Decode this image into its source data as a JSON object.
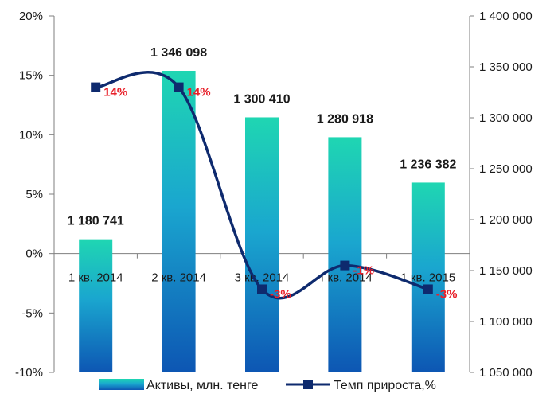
{
  "chart_data": {
    "type": "bar",
    "categories": [
      "1 кв. 2014",
      "2 кв. 2014",
      "3 кв. 2014",
      "4 кв. 2014",
      "1 кв. 2015"
    ],
    "series": [
      {
        "name": "Активы, млн. тенге",
        "type": "bar",
        "axis": "right",
        "values": [
          1180741,
          1346098,
          1300410,
          1280918,
          1236382
        ],
        "value_labels": [
          "1 180 741",
          "1 346 098",
          "1 300 410",
          "1 280 918",
          "1 236 382"
        ]
      },
      {
        "name": "Темп прироста,%",
        "type": "line",
        "axis": "left",
        "values": [
          14,
          14,
          -3,
          -1,
          -3
        ],
        "value_labels": [
          "14%",
          "14%",
          "-3%",
          "-1%",
          "-3%"
        ]
      }
    ],
    "left_axis": {
      "ylim": [
        -10,
        20
      ],
      "ticks": [
        20,
        15,
        10,
        5,
        0,
        -5,
        -10
      ],
      "tick_labels": [
        "20%",
        "15%",
        "10%",
        "5%",
        "0%",
        "-5%",
        "-10%"
      ]
    },
    "right_axis": {
      "ylim": [
        1050000,
        1400000
      ],
      "ticks": [
        1400000,
        1350000,
        1300000,
        1250000,
        1200000,
        1150000,
        1100000,
        1050000
      ],
      "tick_labels": [
        "1 400 000",
        "1 350 000",
        "1 300 000",
        "1 250 000",
        "1 200 000",
        "1 150 000",
        "1 100 000",
        "1 050 000"
      ]
    },
    "legend_position": "bottom",
    "grid": false,
    "colors": {
      "bar_top": "#1fd6b2",
      "bar_mid": "#1aa6cf",
      "bar_bottom": "#0d56b3",
      "line": "#0e2a6e",
      "marker": "#0e2a6e",
      "line_label": "#e8202a"
    }
  }
}
